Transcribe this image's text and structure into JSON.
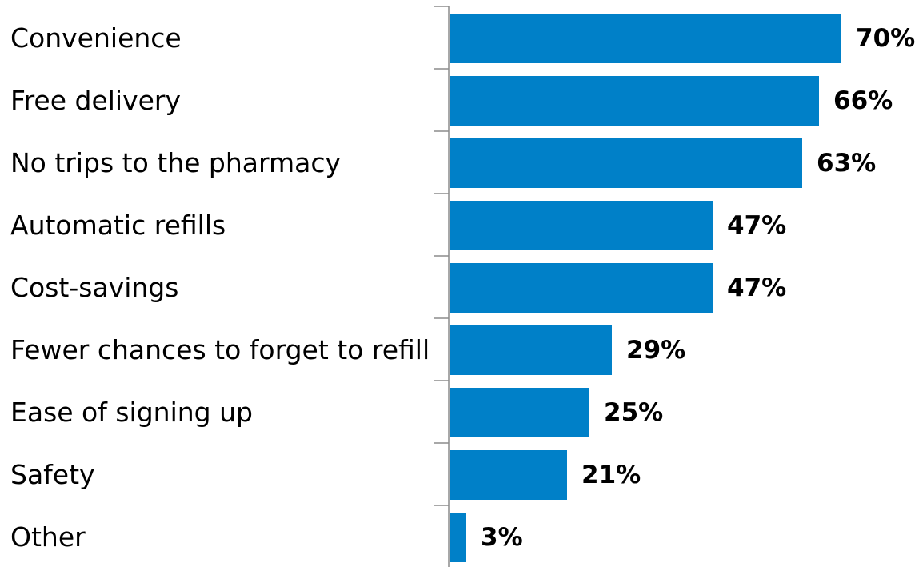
{
  "chart_data": {
    "type": "bar",
    "orientation": "horizontal",
    "categories": [
      "Convenience",
      "Free delivery",
      "No trips to the pharmacy",
      "Automatic refills",
      "Cost-savings",
      "Fewer chances to forget to refill",
      "Ease of signing up",
      "Safety",
      "Other"
    ],
    "values": [
      70,
      66,
      63,
      47,
      47,
      29,
      25,
      21,
      3
    ],
    "value_labels": [
      "70%",
      "66%",
      "63%",
      "47%",
      "47%",
      "29%",
      "25%",
      "21%",
      "3%"
    ],
    "value_unit": "%",
    "xlim": [
      0,
      70
    ],
    "bar_color": "#0080C8",
    "grid": false,
    "legend": "none",
    "title": "",
    "xlabel": "",
    "ylabel": ""
  }
}
